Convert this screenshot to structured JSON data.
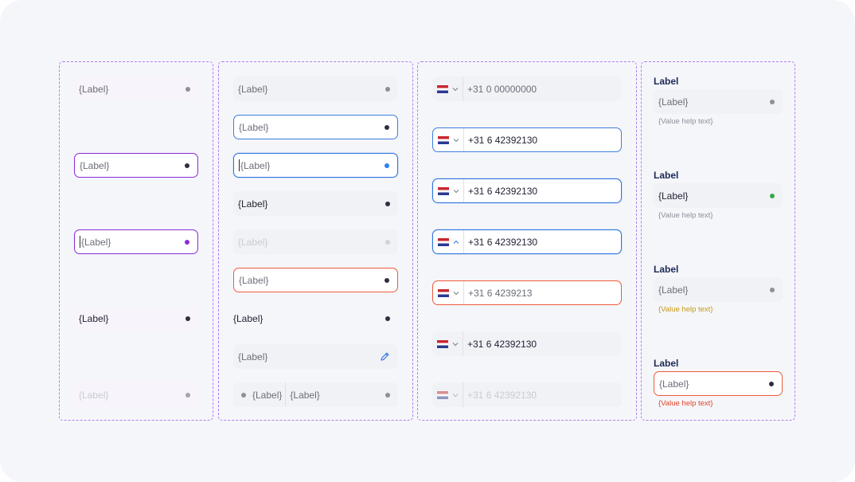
{
  "colors": {
    "canvas": "#f5f6fa",
    "column_border": "#b47cf0",
    "purple_focus": "#8a2ad8",
    "blue_focus": "#3b7ee0",
    "error": "#ee5a3a",
    "success_dot": "#3aa64a",
    "warning_text": "#c79a17",
    "label_heading": "#1b2a55"
  },
  "col1": {
    "f1": "{Label}",
    "f2": "{Label}",
    "f3": "{Label}",
    "f4": "{Label}",
    "f5": "{Label}"
  },
  "col2": {
    "f1": "{Label}",
    "f2": "{Label}",
    "f3": "{Label}",
    "f4": "{Label}",
    "f5": "{Label}",
    "f6": "{Label}",
    "f7": "{Label}",
    "f8": "{Label}",
    "f9_left": "{Label}",
    "f9_right": "{Label}",
    "edit_icon": "pencil-icon"
  },
  "col3": {
    "flag_icon": "netherlands-flag-icon",
    "p1": "+31 0 00000000",
    "p2": "+31 6 42392130",
    "p3": "+31 6 42392130",
    "p4": "+31 6 42392130",
    "p5": "+31 6 4239213",
    "p6": "+31 6 42392130",
    "p7": "+31 6 42392130"
  },
  "col4": {
    "g1": {
      "label": "Label",
      "value": "{Label}",
      "help": "{Value help text}"
    },
    "g2": {
      "label": "Label",
      "value": "{Label}",
      "help": "{Value help text}"
    },
    "g3": {
      "label": "Label",
      "value": "{Label}",
      "help": "{Value help text}"
    },
    "g4": {
      "label": "Label",
      "value": "{Label}",
      "help": "{Value help text}"
    }
  }
}
